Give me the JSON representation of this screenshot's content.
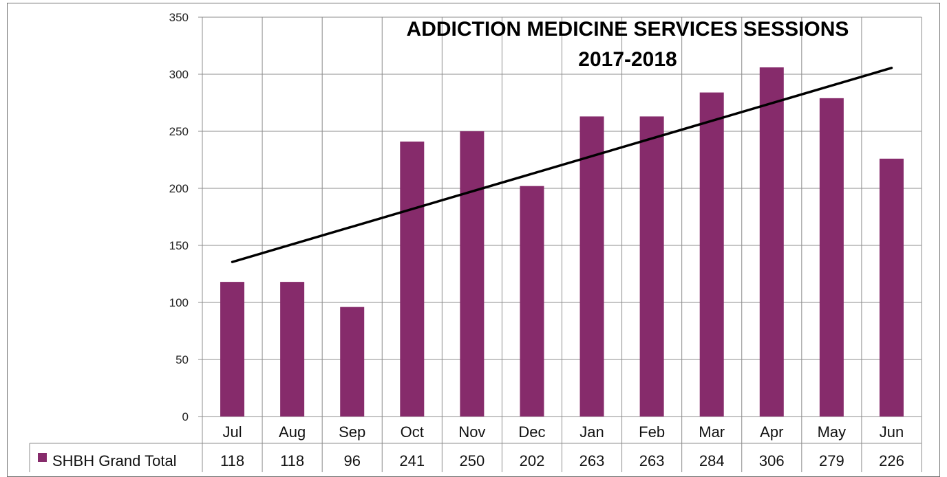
{
  "chart_data": {
    "type": "bar",
    "title": "ADDICTION MEDICINE SERVICES SESSIONS",
    "subtitle": "2017-2018",
    "categories": [
      "Jul",
      "Aug",
      "Sep",
      "Oct",
      "Nov",
      "Dec",
      "Jan",
      "Feb",
      "Mar",
      "Apr",
      "May",
      "Jun"
    ],
    "series": [
      {
        "name": "SHBH Grand Total",
        "values": [
          118,
          118,
          96,
          241,
          250,
          202,
          263,
          263,
          284,
          306,
          279,
          226
        ],
        "color": "#862b6b"
      }
    ],
    "y_ticks": [
      0,
      50,
      100,
      150,
      200,
      250,
      300,
      350
    ],
    "ylim": [
      0,
      350
    ],
    "grid": true,
    "trendline": {
      "type": "linear",
      "color": "#000000"
    },
    "data_table": true,
    "legend_placement": "data-table"
  }
}
